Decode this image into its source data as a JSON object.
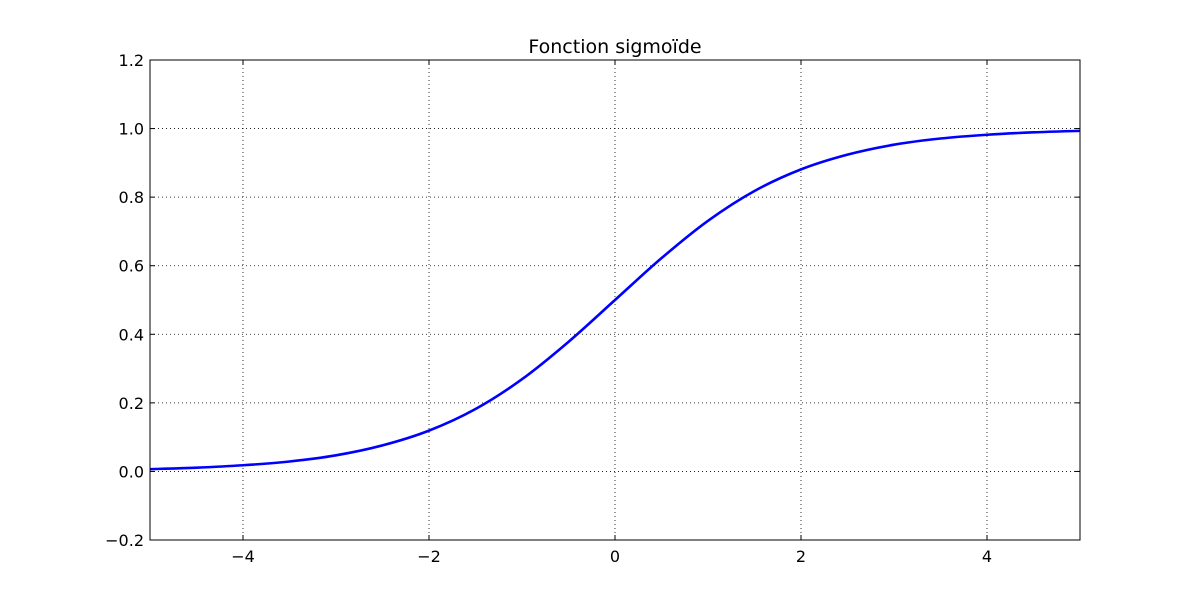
{
  "chart_data": {
    "type": "line",
    "title": "Fonction sigmoïde",
    "xlabel": "",
    "ylabel": "",
    "xlim": [
      -5,
      5
    ],
    "ylim": [
      -0.2,
      1.2
    ],
    "grid": true,
    "x_ticks": [
      -4,
      -2,
      0,
      2,
      4
    ],
    "x_tick_labels": [
      "−4",
      "−2",
      "0",
      "2",
      "4"
    ],
    "y_ticks": [
      -0.2,
      0.0,
      0.2,
      0.4,
      0.6,
      0.8,
      1.0,
      1.2
    ],
    "y_tick_labels": [
      "−0.2",
      "0.0",
      "0.2",
      "0.4",
      "0.6",
      "0.8",
      "1.0",
      "1.2"
    ],
    "series": [
      {
        "color": "#0000ff",
        "x": [
          -5,
          -4.5,
          -4,
          -3.5,
          -3,
          -2.5,
          -2,
          -1.5,
          -1,
          -0.5,
          0,
          0.5,
          1,
          1.5,
          2,
          2.5,
          3,
          3.5,
          4,
          4.5,
          5
        ],
        "y": [
          0.0067,
          0.011,
          0.018,
          0.029,
          0.047,
          0.076,
          0.119,
          0.182,
          0.269,
          0.378,
          0.5,
          0.622,
          0.731,
          0.818,
          0.881,
          0.924,
          0.953,
          0.971,
          0.982,
          0.989,
          0.9933
        ]
      }
    ]
  }
}
